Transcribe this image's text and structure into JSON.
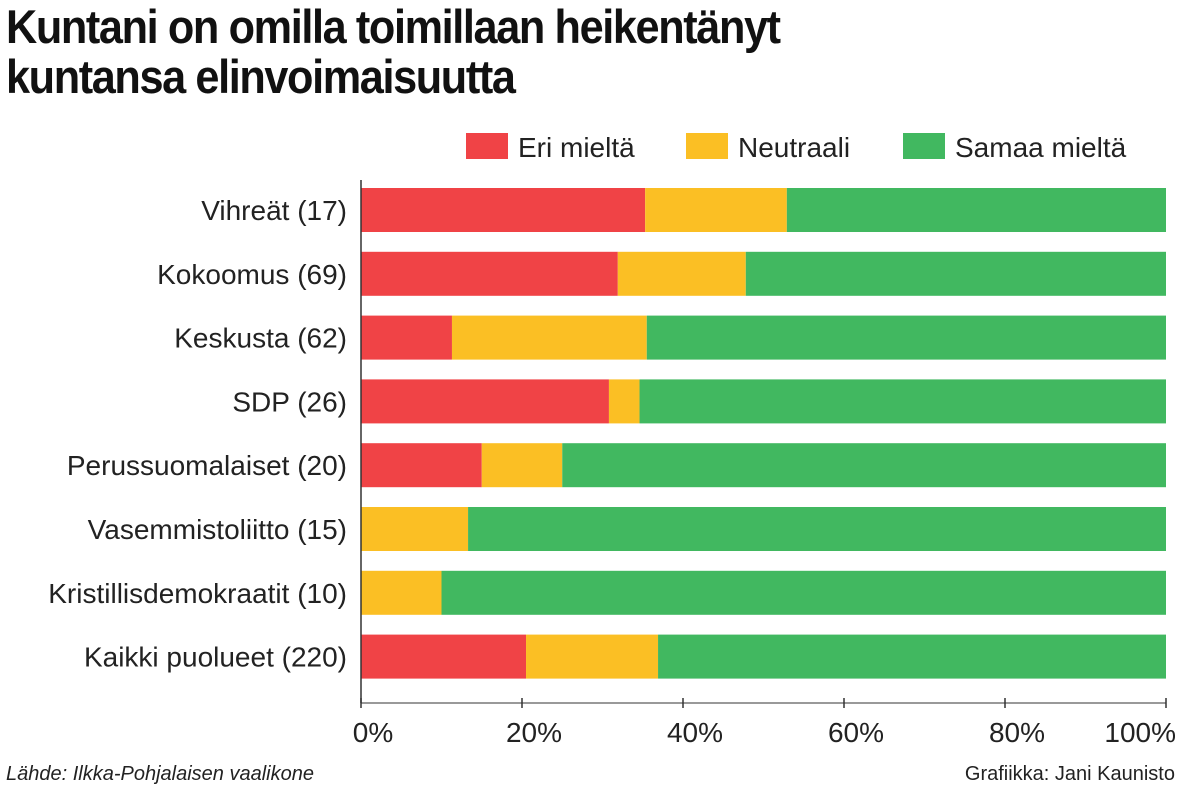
{
  "chart_data": {
    "type": "bar",
    "stacked": true,
    "orientation": "horizontal",
    "title": "Kuntani on omilla toimillaan heikentänyt kuntansa elinvoimaisuutta",
    "categories": [
      "Vihreät (17)",
      "Kokoomus (69)",
      "Keskusta (62)",
      "SDP (26)",
      "Perussuomalaiset (20)",
      "Vasemmistoliitto (15)",
      "Kristillisdemokraatit (10)",
      "Kaikki puolueet (220)"
    ],
    "series": [
      {
        "name": "Eri mieltä",
        "color": "#f04346",
        "values": [
          35.3,
          31.9,
          11.3,
          30.8,
          15.0,
          0,
          0,
          20.5
        ]
      },
      {
        "name": "Neutraali",
        "color": "#fbbf24",
        "values": [
          17.6,
          15.9,
          24.2,
          3.8,
          10.0,
          13.3,
          10.0,
          16.4
        ]
      },
      {
        "name": "Samaa mieltä",
        "color": "#41b860",
        "values": [
          47.1,
          52.2,
          64.5,
          65.4,
          75.0,
          86.7,
          90.0,
          63.1
        ]
      }
    ],
    "xlim": [
      0,
      100
    ],
    "xticks": [
      "0%",
      "20%",
      "40%",
      "60%",
      "80%",
      "100%"
    ],
    "legend_position": "top-right",
    "grid": false
  },
  "footer": {
    "source": "Lähde: Ilkka-Pohjalaisen vaalikone",
    "credit": "Grafiikka: Jani Kaunisto"
  }
}
